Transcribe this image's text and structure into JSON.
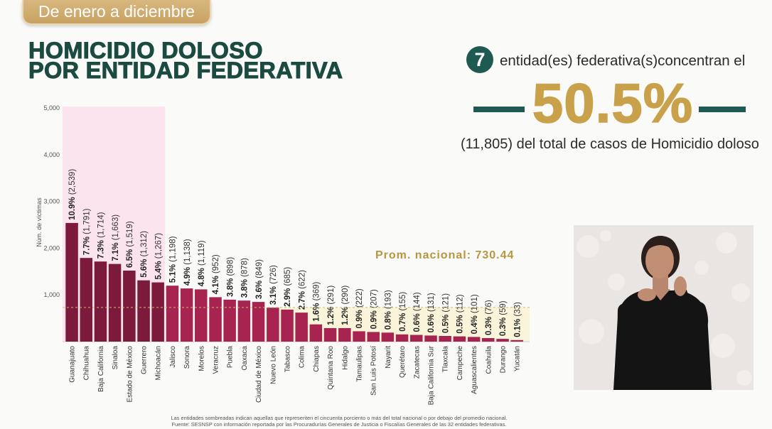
{
  "period_tab": "De enero a diciembre",
  "title": {
    "line1": "HOMICIDIO DOLOSO",
    "line2": "POR ENTIDAD FEDERATIVA"
  },
  "summary": {
    "entity_count": "7",
    "entity_text": "entidad(es) federativa(s)concentran el",
    "share": "50.5%",
    "detail": "(11,805) del total de casos de Homicidio doloso"
  },
  "footnote": {
    "note": "Las entidades sombreadas indican aquellas que representen el cincuenta porciento o más del total nacional o por debajo del promedio nacional.",
    "source": "Fuente: SESNSP con información reportada por las Procuradurías Generales de Justicia o Fiscalías Generales de las 32 entidades federativas."
  },
  "colors": {
    "title_green": "#1b4a40",
    "accent_teal": "#1e5a52",
    "accent_gold": "#c8a14a",
    "bar_top": "#7b1a3b",
    "bar_rest": "#a82450",
    "highlight_bg": "#fce4ef",
    "below_avg_bg": "#faf5da",
    "average_line": "#cbb676"
  },
  "chart_data": {
    "type": "bar",
    "title": "",
    "xlabel": "",
    "ylabel": "Núm. de víctimas",
    "ylim": [
      0,
      5000
    ],
    "yticks": [
      1000,
      2000,
      3000,
      4000,
      5000
    ],
    "ytick_labels": [
      "1,000",
      "2,000",
      "3,000",
      "4,000",
      "5,000"
    ],
    "grid": false,
    "categories": [
      "Guanajuato",
      "Chihuahua",
      "Baja California",
      "Sinaloa",
      "Estado de México",
      "Guerrero",
      "Michoacán",
      "Jalisco",
      "Sonora",
      "Morelos",
      "Veracruz",
      "Puebla",
      "Oaxaca",
      "Ciudad de México",
      "Nuevo León",
      "Tabasco",
      "Colima",
      "Chiapas",
      "Quintana Roo",
      "Hidalgo",
      "Tamaulipas",
      "San Luis Potosí",
      "Nayarit",
      "Querétaro",
      "Zacatecas",
      "Baja California Sur",
      "Tlaxcala",
      "Campeche",
      "Aguascalientes",
      "Coahuila",
      "Durango",
      "Yucatán"
    ],
    "values": [
      2539,
      1791,
      1714,
      1663,
      1519,
      1312,
      1267,
      1198,
      1138,
      1119,
      952,
      898,
      878,
      849,
      726,
      685,
      622,
      369,
      291,
      290,
      222,
      207,
      193,
      155,
      144,
      131,
      121,
      112,
      101,
      76,
      59,
      33
    ],
    "percent_labels": [
      "10.9%",
      "7.7%",
      "7.3%",
      "7.1%",
      "6.5%",
      "5.6%",
      "5.4%",
      "5.1%",
      "4.9%",
      "4.8%",
      "4.1%",
      "3.8%",
      "3.8%",
      "3.6%",
      "3.1%",
      "2.9%",
      "2.7%",
      "1.6%",
      "1.2%",
      "1.2%",
      "0.9%",
      "0.9%",
      "0.8%",
      "0.7%",
      "0.6%",
      "0.6%",
      "0.5%",
      "0.5%",
      "0.4%",
      "0.3%",
      "0.3%",
      "0.1%"
    ],
    "value_labels": [
      "(2,539)",
      "(1,791)",
      "(1,714)",
      "(1,663)",
      "(1,519)",
      "(1,312)",
      "(1,267)",
      "(1,198)",
      "(1,138)",
      "(1,119)",
      "(952)",
      "(898)",
      "(878)",
      "(849)",
      "(726)",
      "(685)",
      "(622)",
      "(369)",
      "(291)",
      "(290)",
      "(222)",
      "(207)",
      "(193)",
      "(155)",
      "(144)",
      "(131)",
      "(121)",
      "(112)",
      "(101)",
      "(76)",
      "(59)",
      "(33)"
    ],
    "average": 730.44,
    "average_label": "Prom. nacional: 730.44",
    "highlighted_top_count": 7
  }
}
